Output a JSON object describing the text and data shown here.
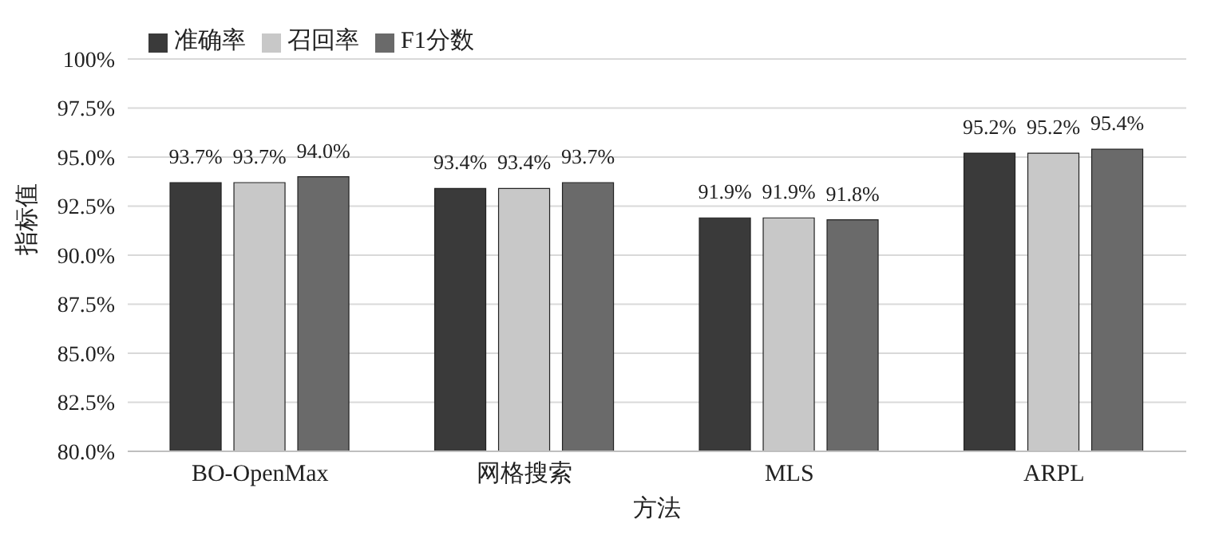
{
  "chart_data": {
    "type": "bar",
    "xlabel": "方法",
    "ylabel": "指标值",
    "categories": [
      "BO-OpenMax",
      "网格搜索",
      "MLS",
      "ARPL"
    ],
    "series": [
      {
        "name": "准确率",
        "color": "#3a3a3a",
        "values": [
          93.7,
          93.4,
          91.9,
          95.2
        ],
        "value_labels": [
          "93.7%",
          "93.4%",
          "91.9%",
          "95.2%"
        ]
      },
      {
        "name": "召回率",
        "color": "#c8c8c8",
        "values": [
          93.7,
          93.4,
          91.9,
          95.2
        ],
        "value_labels": [
          "93.7%",
          "93.4%",
          "91.9%",
          "95.2%"
        ]
      },
      {
        "name": "F1分数",
        "color": "#6a6a6a",
        "values": [
          94.0,
          93.7,
          91.8,
          95.4
        ],
        "value_labels": [
          "94.0%",
          "93.7%",
          "91.8%",
          "95.4%"
        ]
      }
    ],
    "ylim": [
      80,
      100
    ],
    "yticks": [
      {
        "value": 80,
        "label": "80.0%"
      },
      {
        "value": 82.5,
        "label": "82.5%"
      },
      {
        "value": 85,
        "label": "85.0%"
      },
      {
        "value": 87.5,
        "label": "87.5%"
      },
      {
        "value": 90,
        "label": "90.0%"
      },
      {
        "value": 92.5,
        "label": "92.5%"
      },
      {
        "value": 95,
        "label": "95.0%"
      },
      {
        "value": 97.5,
        "label": "97.5%"
      },
      {
        "value": 100,
        "label": "100%"
      }
    ],
    "grid": "y",
    "legend": "top left"
  }
}
